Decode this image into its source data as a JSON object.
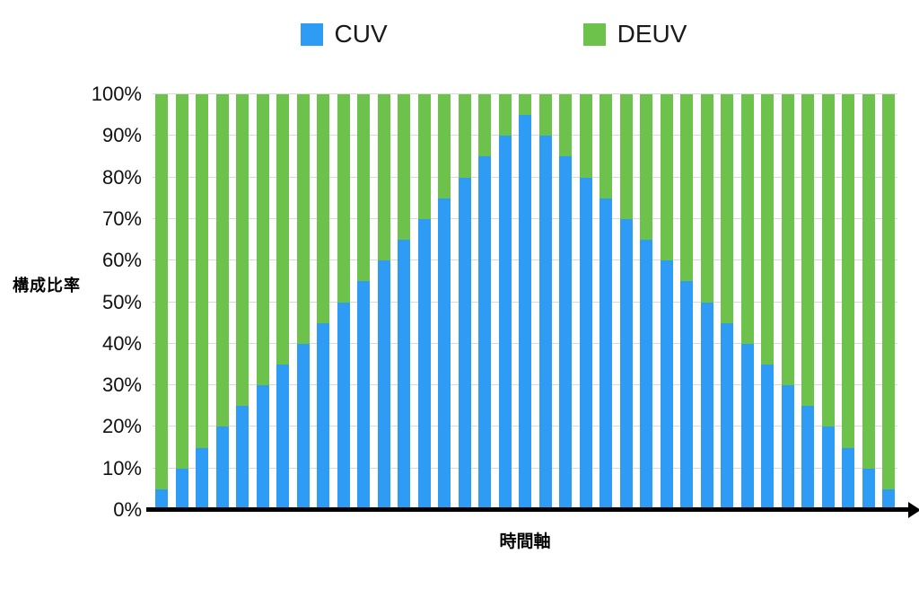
{
  "chart_data": {
    "type": "bar",
    "stacked": true,
    "stack_mode": "percent",
    "title": "",
    "xlabel": "時間軸",
    "ylabel": "構成比率",
    "ylim": [
      0,
      100
    ],
    "grid": true,
    "legend_position": "top",
    "ytick_values": [
      0,
      10,
      20,
      30,
      40,
      50,
      60,
      70,
      80,
      90,
      100
    ],
    "ytick_labels": [
      "0%",
      "10%",
      "20%",
      "30%",
      "40%",
      "50%",
      "60%",
      "70%",
      "80%",
      "90%",
      "100%"
    ],
    "xtick_labels": [],
    "series": [
      {
        "name": "CUV",
        "color": "#2e9bf4",
        "values": [
          5,
          10,
          15,
          20,
          25,
          30,
          35,
          40,
          45,
          50,
          55,
          60,
          65,
          70,
          75,
          80,
          85,
          90,
          95,
          90,
          85,
          80,
          75,
          70,
          65,
          60,
          55,
          50,
          45,
          40,
          35,
          30,
          25,
          20,
          15,
          10,
          5
        ]
      },
      {
        "name": "DEUV",
        "color": "#6cc24b",
        "values": [
          95,
          90,
          85,
          80,
          75,
          70,
          65,
          60,
          55,
          50,
          45,
          40,
          35,
          30,
          25,
          20,
          15,
          10,
          5,
          10,
          15,
          20,
          25,
          30,
          35,
          40,
          45,
          50,
          55,
          60,
          65,
          70,
          75,
          80,
          85,
          90,
          95
        ]
      }
    ]
  }
}
